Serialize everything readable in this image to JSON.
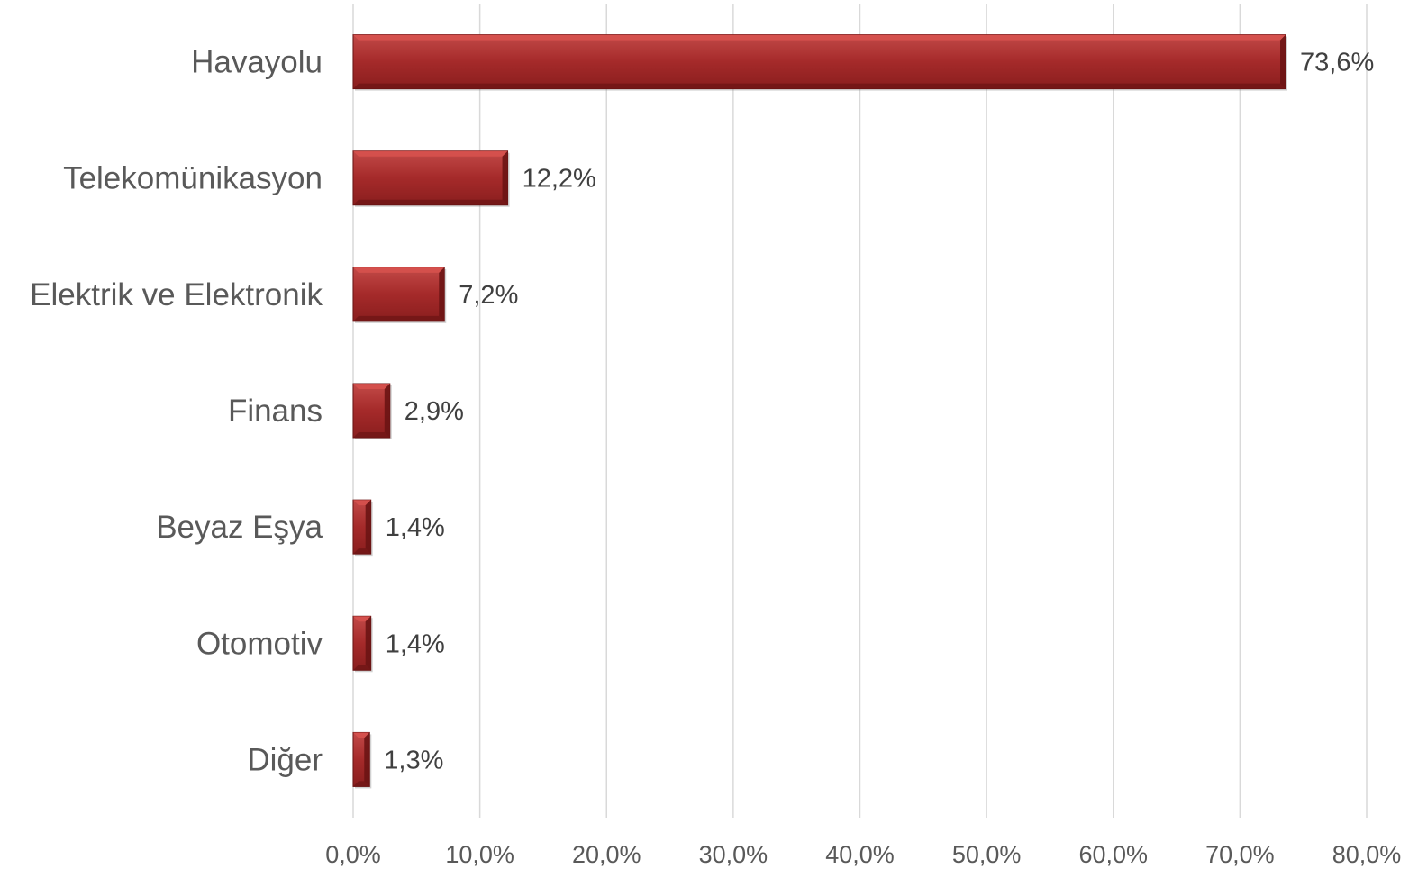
{
  "chart_data": {
    "type": "bar",
    "orientation": "horizontal",
    "categories": [
      "Havayolu",
      "Telekomünikasyon",
      "Elektrik ve Elektronik",
      "Finans",
      "Beyaz Eşya",
      "Otomotiv",
      "Diğer"
    ],
    "values": [
      73.6,
      12.2,
      7.2,
      2.9,
      1.4,
      1.4,
      1.3
    ],
    "data_labels": [
      "73,6%",
      "12,2%",
      "7,2%",
      "2,9%",
      "1,4%",
      "1,4%",
      "1,3%"
    ],
    "x_ticks": [
      "0,0%",
      "10,0%",
      "20,0%",
      "30,0%",
      "40,0%",
      "50,0%",
      "60,0%",
      "70,0%",
      "80,0%"
    ],
    "xlim": [
      0,
      80
    ],
    "grid": "vertical",
    "legend": "none",
    "bar_color": "#a52a2a",
    "bar_highlight_color": "#d9534f",
    "bar_shadow_color": "#6b1414"
  }
}
